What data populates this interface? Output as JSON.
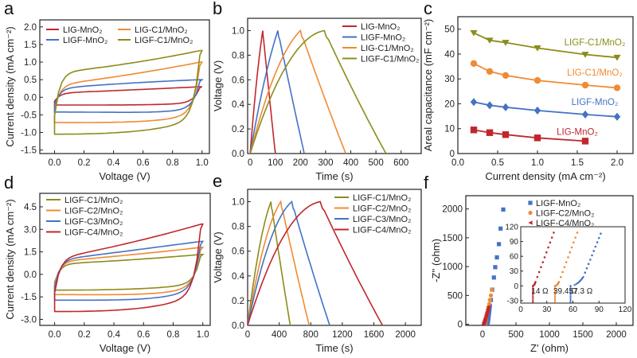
{
  "colors": {
    "red": "#c0272d",
    "blue": "#4472c4",
    "orange": "#f08a33",
    "olive": "#8c8c1a",
    "green2": "#7f8f1b"
  },
  "chart_data": [
    {
      "id": "a",
      "panel_label": "a",
      "type": "line",
      "xlabel": "Voltage (V)",
      "ylabel": "Current density (mA cm⁻²)",
      "xlim": [
        -0.1,
        1.05
      ],
      "ylim": [
        -1.6,
        2.2
      ],
      "xticks": [
        0.0,
        0.2,
        0.4,
        0.6,
        0.8,
        1.0
      ],
      "xtick_labels": [
        "0.0",
        "0.2",
        "0.4",
        "0.6",
        "0.8",
        "1.0"
      ],
      "yticks": [
        -1.5,
        -1.0,
        -0.5,
        0.0,
        0.5,
        1.0,
        1.5,
        2.0
      ],
      "ytick_labels": [
        "-1.5",
        "-1.0",
        "-0.5",
        "0.0",
        "0.5",
        "1.0",
        "1.5",
        "2.0"
      ],
      "legend": "top",
      "legend_columns": 2,
      "series": [
        {
          "name": "LIG-MnO2",
          "label": "LIG-MnO₂",
          "color": "red",
          "kind": "cv",
          "top": [
            0.12,
            0.2,
            0.3
          ],
          "bottom": [
            -0.22,
            -0.22,
            -0.15
          ],
          "jump": 0.3
        },
        {
          "name": "LIG-C1/MnO2",
          "label": "LIG-C1/MnO₂",
          "color": "orange",
          "kind": "cv",
          "top": [
            0.35,
            0.6,
            1.0
          ],
          "bottom": [
            -0.72,
            -0.7,
            -0.45
          ],
          "jump": 1.0
        },
        {
          "name": "LIGF-MnO2",
          "label": "LIGF-MnO₂",
          "color": "blue",
          "kind": "cv",
          "top": [
            0.25,
            0.42,
            0.5
          ],
          "bottom": [
            -0.42,
            -0.46,
            -0.3
          ],
          "jump": 0.5
        },
        {
          "name": "LIGF-C1/MnO2",
          "label": "LIGF-C1/MnO₂",
          "color": "olive",
          "kind": "cv",
          "top": [
            0.7,
            0.9,
            1.33
          ],
          "bottom": [
            -1.05,
            -0.92,
            -0.6
          ],
          "jump": 1.33
        }
      ]
    },
    {
      "id": "b",
      "panel_label": "b",
      "type": "line",
      "xlabel": "Time (s)",
      "ylabel": "Voltage (V)",
      "xlim": [
        -10,
        680
      ],
      "ylim": [
        0,
        1.1
      ],
      "xticks": [
        0,
        100,
        200,
        300,
        400,
        500,
        600
      ],
      "xtick_labels": [
        "0",
        "100",
        "200",
        "300",
        "400",
        "500",
        "600"
      ],
      "yticks": [
        0,
        0.2,
        0.4,
        0.6,
        0.8,
        1.0
      ],
      "ytick_labels": [
        "0.0",
        "0.2",
        "0.4",
        "0.6",
        "0.8",
        "1.0"
      ],
      "legend": "top-right",
      "series": [
        {
          "name": "LIG-MnO2",
          "label": "LIG-MnO₂",
          "color": "red",
          "kind": "gcd",
          "t_peak": 50,
          "t_end": 100,
          "curv": 0.3
        },
        {
          "name": "LIGF-MnO2",
          "label": "LIGF-MnO₂",
          "color": "blue",
          "kind": "gcd",
          "t_peak": 110,
          "t_end": 215,
          "curv": 0.3
        },
        {
          "name": "LIG-C1/MnO2",
          "label": "LIG-C1/MnO₂",
          "color": "orange",
          "kind": "gcd",
          "t_peak": 200,
          "t_end": 380,
          "curv": 0.6
        },
        {
          "name": "LIGF-C1/MnO2",
          "label": "LIGF-C1/MnO₂",
          "color": "olive",
          "kind": "gcd",
          "t_peak": 295,
          "t_end": 540,
          "curv": 0.9
        }
      ]
    },
    {
      "id": "c",
      "panel_label": "c",
      "type": "line",
      "xlabel": "Current density (mA cm⁻²)",
      "ylabel": "Areal capacitance (mF cm⁻²)",
      "xlim": [
        0,
        2.2
      ],
      "ylim": [
        0,
        55
      ],
      "xticks": [
        0,
        0.5,
        1.0,
        1.5,
        2.0
      ],
      "xtick_labels": [
        "0.0",
        "0.5",
        "1.0",
        "1.5",
        "2.0"
      ],
      "yticks": [
        0,
        10,
        20,
        30,
        40,
        50
      ],
      "ytick_labels": [
        "0",
        "10",
        "20",
        "30",
        "40",
        "50"
      ],
      "series": [
        {
          "name": "LIGF-C1/MnO2",
          "label": "LIGF-C1/MnO₂",
          "color": "olive",
          "marker": "triangle-down",
          "x": [
            0.2,
            0.4,
            0.6,
            1.0,
            1.6,
            2.0
          ],
          "y": [
            48.5,
            45.5,
            44.6,
            42.4,
            39.8,
            38.6
          ],
          "label_at": [
            1.72,
            43.5
          ]
        },
        {
          "name": "LIG-C1/MnO2",
          "label": "LIG-C1/MnO₂",
          "color": "orange",
          "marker": "circle",
          "x": [
            0.2,
            0.4,
            0.6,
            1.0,
            1.6,
            2.0
          ],
          "y": [
            36.2,
            33.0,
            31.4,
            29.4,
            27.5,
            26.4
          ],
          "label_at": [
            1.72,
            31.3
          ]
        },
        {
          "name": "LIGF-MnO2",
          "label": "LIGF-MnO₂",
          "color": "blue",
          "marker": "diamond",
          "x": [
            0.2,
            0.4,
            0.6,
            1.0,
            1.6,
            2.0
          ],
          "y": [
            20.7,
            19.4,
            18.6,
            17.3,
            15.7,
            14.8
          ],
          "label_at": [
            1.72,
            19.5
          ]
        },
        {
          "name": "LIG-MnO2",
          "label": "LIG-MnO₂",
          "color": "red",
          "marker": "square",
          "x": [
            0.2,
            0.4,
            0.6,
            1.0,
            1.6
          ],
          "y": [
            9.5,
            8.4,
            7.6,
            6.3,
            5.0
          ],
          "label_at": [
            1.5,
            7.5
          ]
        }
      ]
    },
    {
      "id": "d",
      "panel_label": "d",
      "type": "line",
      "xlabel": "Voltage (V)",
      "ylabel": "Current density (mA cm⁻²)",
      "xlim": [
        -0.1,
        1.05
      ],
      "ylim": [
        -3.4,
        5.4
      ],
      "xticks": [
        0.0,
        0.2,
        0.4,
        0.6,
        0.8,
        1.0
      ],
      "xtick_labels": [
        "0.0",
        "0.2",
        "0.4",
        "0.6",
        "0.8",
        "1.0"
      ],
      "yticks": [
        -3.0,
        -1.5,
        0.0,
        1.5,
        3.0,
        4.5
      ],
      "ytick_labels": [
        "-3.0",
        "-1.5",
        "0.0",
        "1.5",
        "3.0",
        "4.5"
      ],
      "legend": "top-left",
      "series": [
        {
          "name": "LIGF-C1/MnO2",
          "label": "LIGF-C1/MnO₂",
          "color": "olive",
          "kind": "cv",
          "top": [
            0.7,
            0.9,
            1.33
          ],
          "bottom": [
            -1.05,
            -0.92,
            -0.6
          ],
          "jump": 1.33
        },
        {
          "name": "LIGF-C2/MnO2",
          "label": "LIGF-C2/MnO₂",
          "color": "orange",
          "kind": "cv",
          "top": [
            0.85,
            1.25,
            1.8
          ],
          "bottom": [
            -1.35,
            -1.4,
            -0.75
          ],
          "jump": 1.8
        },
        {
          "name": "LIGF-C3/MnO2",
          "label": "LIGF-C3/MnO₂",
          "color": "blue",
          "kind": "cv",
          "top": [
            0.95,
            1.55,
            2.2
          ],
          "bottom": [
            -1.72,
            -1.72,
            -0.9
          ],
          "jump": 2.2
        },
        {
          "name": "LIGF-C4/MnO2",
          "label": "LIGF-C4/MnO₂",
          "color": "red",
          "kind": "cv",
          "top": [
            1.05,
            1.95,
            3.35
          ],
          "bottom": [
            -2.48,
            -2.2,
            -1.3
          ],
          "jump": 3.35
        }
      ]
    },
    {
      "id": "e",
      "panel_label": "e",
      "type": "line",
      "xlabel": "Time (s)",
      "ylabel": "Voltage (V)",
      "xlim": [
        0,
        2200
      ],
      "ylim": [
        0,
        1.1
      ],
      "xticks": [
        0,
        400,
        800,
        1200,
        1600,
        2000
      ],
      "xtick_labels": [
        "0",
        "400",
        "800",
        "1200",
        "1600",
        "2000"
      ],
      "yticks": [
        0,
        0.2,
        0.4,
        0.6,
        0.8,
        1.0
      ],
      "ytick_labels": [
        "0.0",
        "0.2",
        "0.4",
        "0.6",
        "0.8",
        "1.0"
      ],
      "legend": "top-right",
      "series": [
        {
          "name": "LIGF-C1/MnO2",
          "label": "LIGF-C1/MnO₂",
          "color": "olive",
          "kind": "gcd",
          "t_peak": 295,
          "t_end": 540,
          "curv": 0.5
        },
        {
          "name": "LIGF-C2/MnO2",
          "label": "LIGF-C2/MnO₂",
          "color": "orange",
          "kind": "gcd",
          "t_peak": 420,
          "t_end": 780,
          "curv": 0.6
        },
        {
          "name": "LIGF-C3/MnO2",
          "label": "LIGF-C3/MnO₂",
          "color": "blue",
          "kind": "gcd",
          "t_peak": 560,
          "t_end": 1040,
          "curv": 0.7
        },
        {
          "name": "LIGF-C4/MnO2",
          "label": "LIGF-C4/MnO₂",
          "color": "red",
          "kind": "gcd",
          "t_peak": 920,
          "t_end": 1710,
          "curv": 0.9
        }
      ]
    },
    {
      "id": "f",
      "panel_label": "f",
      "type": "scatter",
      "xlabel": "Z' (ohm)",
      "ylabel": "-Z'' (ohm)",
      "xlim": [
        -250,
        2250
      ],
      "ylim": [
        -20,
        2230
      ],
      "xticks": [
        0,
        500,
        1000,
        1500,
        2000
      ],
      "xtick_labels": [
        "0",
        "500",
        "1000",
        "1500",
        "2000"
      ],
      "yticks": [
        0,
        500,
        1000,
        1500,
        2000
      ],
      "ytick_labels": [
        "0",
        "500",
        "1000",
        "1500",
        "2000"
      ],
      "legend": "top",
      "series": [
        {
          "name": "LIGF-MnO2",
          "label": "LIGF-MnO₂",
          "color": "blue",
          "marker": "square",
          "x": [
            75,
            80,
            85,
            90,
            95,
            100,
            105,
            110,
            125,
            145,
            170,
            190,
            215,
            245,
            270,
            310
          ],
          "y": [
            10,
            40,
            80,
            120,
            170,
            220,
            270,
            320,
            420,
            600,
            810,
            990,
            1160,
            1390,
            1660,
            1990
          ]
        },
        {
          "name": "LIGF-C2/MnO2",
          "label": "LIGF-C2/MnO₂",
          "color": "orange",
          "marker": "circle",
          "x": [
            40,
            45,
            50,
            55,
            60,
            70,
            80,
            90,
            100,
            110,
            125,
            140
          ],
          "y": [
            10,
            40,
            80,
            120,
            160,
            200,
            250,
            300,
            350,
            420,
            500,
            600
          ]
        },
        {
          "name": "LIGF-C4/MnO2",
          "label": "LIGF-C4/MnO₂",
          "color": "red",
          "marker": "triangle-left",
          "x": [
            14,
            20,
            26,
            32,
            38,
            44,
            50,
            56,
            62,
            68,
            74,
            80,
            86
          ],
          "y": [
            5,
            25,
            45,
            65,
            90,
            115,
            140,
            165,
            190,
            215,
            240,
            270,
            300
          ]
        }
      ],
      "inset": {
        "xlim": [
          0,
          120
        ],
        "ylim": [
          -35,
          120
        ],
        "xticks": [
          0,
          30,
          60,
          90,
          120
        ],
        "xtick_labels": [
          "0",
          "30",
          "60",
          "90",
          "120"
        ],
        "yticks": [
          -30,
          0,
          30,
          60,
          90,
          120
        ],
        "ytick_labels": [
          "-30",
          "0",
          "30",
          "60",
          "90",
          "120"
        ],
        "annotations": [
          {
            "text": "14 Ω",
            "x": 14,
            "color": "red"
          },
          {
            "text": "39.4 Ω",
            "x": 39.4,
            "color": "orange"
          },
          {
            "text": "57.3 Ω",
            "x": 57.3,
            "color": "blue"
          }
        ],
        "series": [
          {
            "name": "LIGF-C4/MnO2",
            "color": "red",
            "r0": 14,
            "knee": [
              17,
              8
            ],
            "end": [
              38,
              108
            ]
          },
          {
            "name": "LIGF-C2/MnO2",
            "color": "orange",
            "r0": 39.4,
            "knee": [
              44,
              8
            ],
            "end": [
              65,
              108
            ]
          },
          {
            "name": "LIGF-MnO2",
            "color": "blue",
            "r0": 57.3,
            "knee": [
              72,
              18
            ],
            "end": [
              92,
              106
            ]
          }
        ]
      }
    }
  ]
}
